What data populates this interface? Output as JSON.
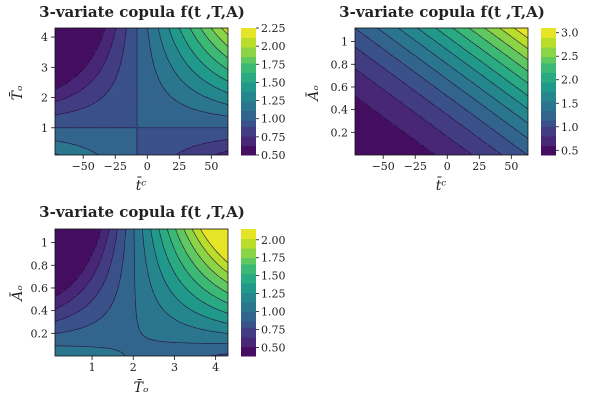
{
  "chart_data": [
    {
      "id": "tT",
      "type": "contour",
      "title": "3-variate copula f(t  ,T,A)",
      "xlabel": "t̄ᶜ",
      "ylabel": "T̄ₒ",
      "xlim": [
        -72,
        63
      ],
      "ylim": [
        0.1,
        4.3
      ],
      "xticks": [
        -50,
        -25,
        0,
        25,
        50
      ],
      "yticks": [
        1,
        2,
        3,
        4
      ],
      "colorbar": {
        "min": 0.5,
        "max": 2.25,
        "ticks": [
          0.5,
          0.75,
          1.0,
          1.25,
          1.5,
          1.75,
          2.0,
          2.25
        ],
        "tick_labels": [
          "0.50",
          "0.75",
          "1.00",
          "1.25",
          "1.50",
          "1.75",
          "2.00",
          "2.25"
        ]
      },
      "surface": {
        "form": "product",
        "a": 0.48,
        "b": 0.64,
        "k": 2.6,
        "x0": -8,
        "y0": 1.0,
        "base": 1.0
      }
    },
    {
      "id": "tA",
      "type": "contour",
      "title": "3-variate copula f(t  ,T,A)",
      "xlabel": "t̄ᶜ",
      "ylabel": "Āₒ",
      "xlim": [
        -72,
        63
      ],
      "ylim": [
        0.0,
        1.12
      ],
      "xticks": [
        -50,
        -25,
        0,
        25,
        50
      ],
      "yticks": [
        0.2,
        0.4,
        0.6,
        0.8,
        1.0
      ],
      "colorbar": {
        "min": 0.4,
        "max": 3.1,
        "ticks": [
          0.5,
          1.0,
          1.5,
          2.0,
          2.5,
          3.0
        ],
        "tick_labels": [
          "0.5",
          "1.0",
          "1.5",
          "2.0",
          "2.5",
          "3.0"
        ]
      },
      "surface": {
        "form": "sum",
        "a": 0.4,
        "b": 2.7,
        "p": 1.8
      }
    },
    {
      "id": "TA",
      "type": "contour",
      "title": "3-variate copula f(t  ,T,A)",
      "xlabel": "T̄ₒ",
      "ylabel": "Āₒ",
      "xlim": [
        0.1,
        4.3
      ],
      "ylim": [
        0.0,
        1.12
      ],
      "xticks": [
        1,
        2,
        3,
        4
      ],
      "yticks": [
        0.2,
        0.4,
        0.6,
        0.8,
        1.0
      ],
      "colorbar": {
        "min": 0.38,
        "max": 2.15,
        "ticks": [
          0.5,
          0.75,
          1.0,
          1.25,
          1.5,
          1.75,
          2.0
        ],
        "tick_labels": [
          "0.50",
          "0.75",
          "1.00",
          "1.25",
          "1.50",
          "1.75",
          "2.00"
        ]
      },
      "surface": {
        "form": "product",
        "a": 0.5,
        "b": 0.5,
        "k": 2.9,
        "x0": 2.0,
        "y0": 0.1,
        "base": 1.0
      }
    }
  ]
}
